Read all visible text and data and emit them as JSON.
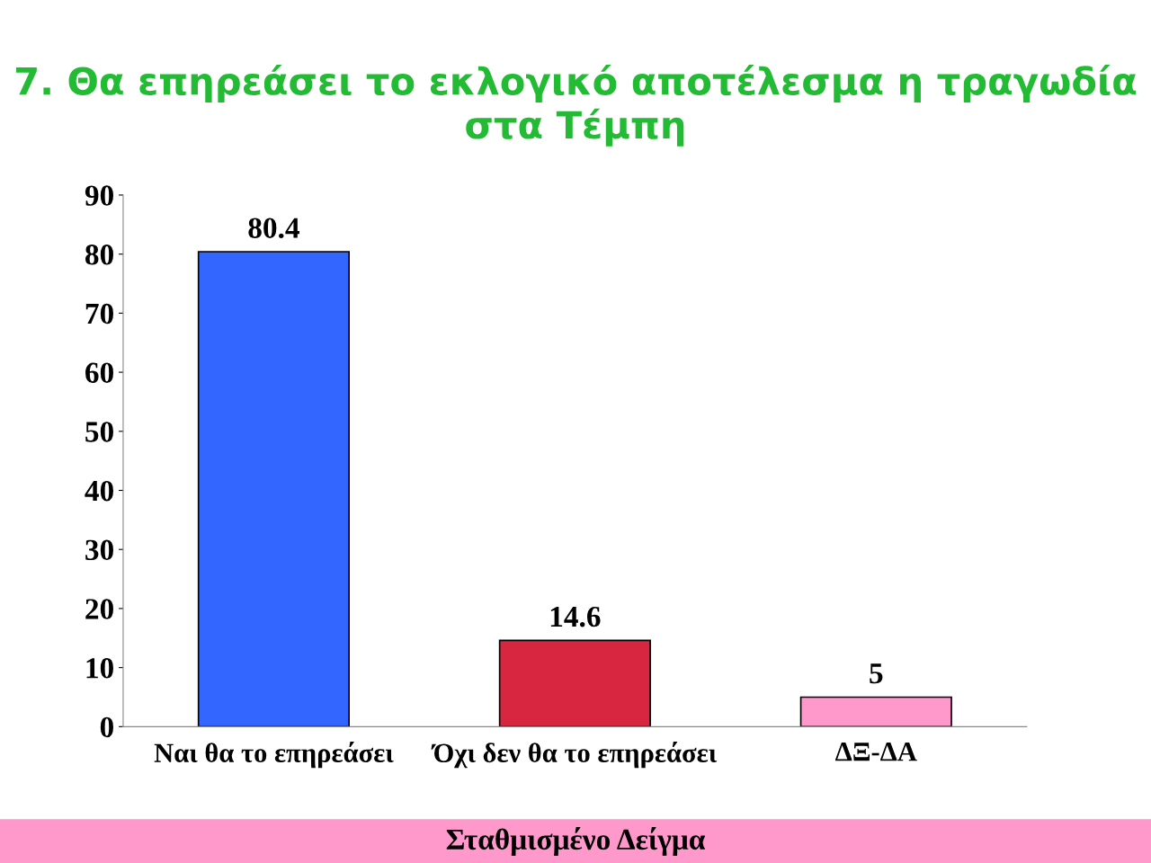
{
  "chart_data": {
    "type": "bar",
    "title": "7. Θα επηρεάσει το εκλογικό αποτέλεσμα η τραγωδία στα Τέμπη",
    "categories": [
      "Ναι θα το επηρεάσει",
      "Όχι δεν θα το επηρεάσει",
      "ΔΞ-ΔΑ"
    ],
    "values": [
      80.4,
      14.6,
      5
    ],
    "colors": [
      "#3366ff",
      "#d92640",
      "#ff99cc"
    ],
    "ylim": [
      0,
      90
    ],
    "yticks": [
      0,
      10,
      20,
      30,
      40,
      50,
      60,
      70,
      80,
      90
    ],
    "data_labels": true,
    "grid": false,
    "legend": false,
    "annotations": [
      "Σταθμισμένο Δείγμα"
    ]
  }
}
